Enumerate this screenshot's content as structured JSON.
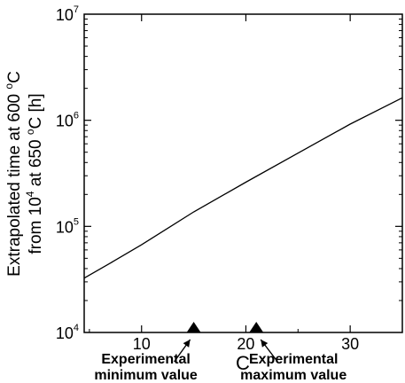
{
  "chart_data": {
    "type": "line",
    "xlabel": "C",
    "ylabel": {
      "line1": {
        "prefix": "Extrapolated time at 600 ",
        "sup": "o",
        "suffix": "C"
      },
      "line2": {
        "prefix": "from 10",
        "sup1": "4",
        "mid": " at 650 ",
        "sup2": "o",
        "suffix": "C [h]"
      }
    },
    "xlim": [
      4.5,
      35
    ],
    "ylim": [
      10000,
      10000000
    ],
    "yscale": "log",
    "grid": false,
    "x_ticks": [
      {
        "value": 10,
        "label": "10"
      },
      {
        "value": 20,
        "label": "20"
      },
      {
        "value": 30,
        "label": "30"
      }
    ],
    "y_ticks": [
      {
        "value": 10000,
        "base": "10",
        "exp": "4"
      },
      {
        "value": 100000,
        "base": "10",
        "exp": "5"
      },
      {
        "value": 1000000,
        "base": "10",
        "exp": "6"
      },
      {
        "value": 10000000,
        "base": "10",
        "exp": "7"
      }
    ],
    "series": [
      {
        "x": [
          4.5,
          7,
          10,
          15,
          20,
          25,
          30,
          35
        ],
        "y": [
          32500,
          45000,
          67000,
          137000,
          261000,
          490000,
          920000,
          1630000
        ]
      }
    ],
    "markers": [
      {
        "x": 15,
        "line1": "Experimental",
        "line2": "minimum value"
      },
      {
        "x": 21,
        "line1": "Experimental",
        "line2": "maximum value"
      }
    ],
    "colors": {
      "line": "#000000",
      "axis": "#000000",
      "background": "#ffffff"
    }
  }
}
